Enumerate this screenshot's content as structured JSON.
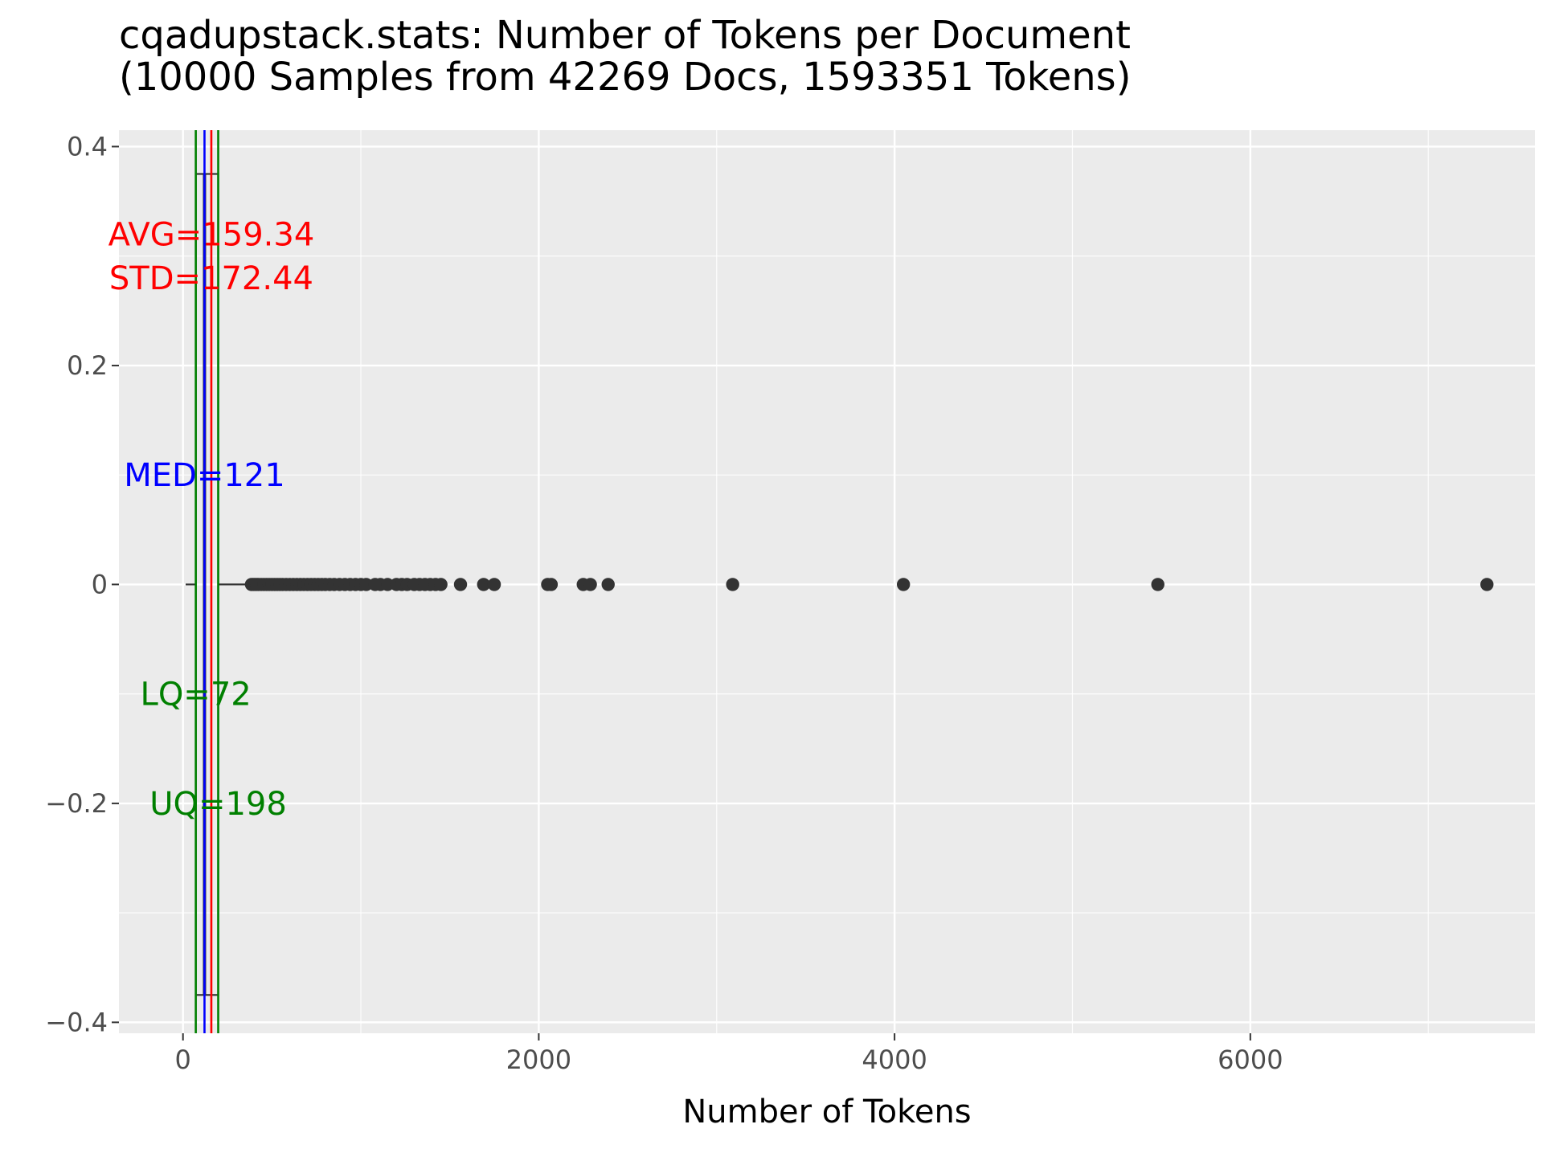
{
  "chart_data": {
    "type": "boxplot",
    "title": "cqadupstack.stats: Number of Tokens per Document",
    "subtitle": "(10000 Samples from 42269 Docs, 1593351 Tokens)",
    "xlabel": "Number of Tokens",
    "ylabel": "",
    "xlim": [
      -360,
      7600
    ],
    "ylim": [
      -0.41,
      0.415
    ],
    "x_ticks": [
      {
        "value": 0,
        "label": "0"
      },
      {
        "value": 2000,
        "label": "2000"
      },
      {
        "value": 4000,
        "label": "4000"
      },
      {
        "value": 6000,
        "label": "6000"
      }
    ],
    "y_ticks": [
      {
        "value": 0.4,
        "label": "0.4"
      },
      {
        "value": 0.2,
        "label": "0.2"
      },
      {
        "value": 0,
        "label": "0"
      },
      {
        "value": -0.2,
        "label": "−0.2"
      },
      {
        "value": -0.4,
        "label": "−0.4"
      }
    ],
    "grid": true,
    "box": {
      "lower_whisker": 15,
      "lower_quartile": 72,
      "median": 121,
      "upper_quartile": 198,
      "upper_whisker": 380,
      "y": 0,
      "half_width": 0.375
    },
    "outliers": [
      385,
      395,
      405,
      415,
      425,
      440,
      455,
      470,
      485,
      500,
      515,
      530,
      545,
      560,
      580,
      600,
      620,
      640,
      660,
      680,
      700,
      720,
      740,
      760,
      780,
      800,
      825,
      850,
      880,
      910,
      940,
      970,
      1000,
      1030,
      1080,
      1110,
      1150,
      1200,
      1230,
      1260,
      1300,
      1330,
      1360,
      1390,
      1420,
      1450,
      1560,
      1690,
      1750,
      2050,
      2070,
      2250,
      2290,
      2390,
      3090,
      4050,
      5480,
      7330
    ],
    "reference_lines": [
      {
        "name": "LQ",
        "value": 72,
        "color": "#008000"
      },
      {
        "name": "MED",
        "value": 121,
        "color": "#0000ff"
      },
      {
        "name": "AVG",
        "value": 159.34,
        "color": "#ff0000"
      },
      {
        "name": "UQ",
        "value": 198,
        "color": "#008000"
      }
    ],
    "annotations": [
      {
        "text": "AVG=159.34",
        "x": 159.34,
        "y": 0.32,
        "color": "#ff0000"
      },
      {
        "text": "STD=172.44",
        "x": 159.34,
        "y": 0.28,
        "color": "#ff0000"
      },
      {
        "text": "MED=121",
        "x": 121,
        "y": 0.1,
        "color": "#0000ff"
      },
      {
        "text": "LQ=72",
        "x": 72,
        "y": -0.1,
        "color": "#008000"
      },
      {
        "text": "UQ=198",
        "x": 198,
        "y": -0.2,
        "color": "#008000"
      }
    ],
    "colors": {
      "panel_background": "#ebebeb",
      "grid_major": "#ffffff",
      "box_stroke": "#333333",
      "outlier_fill": "#333333"
    }
  }
}
